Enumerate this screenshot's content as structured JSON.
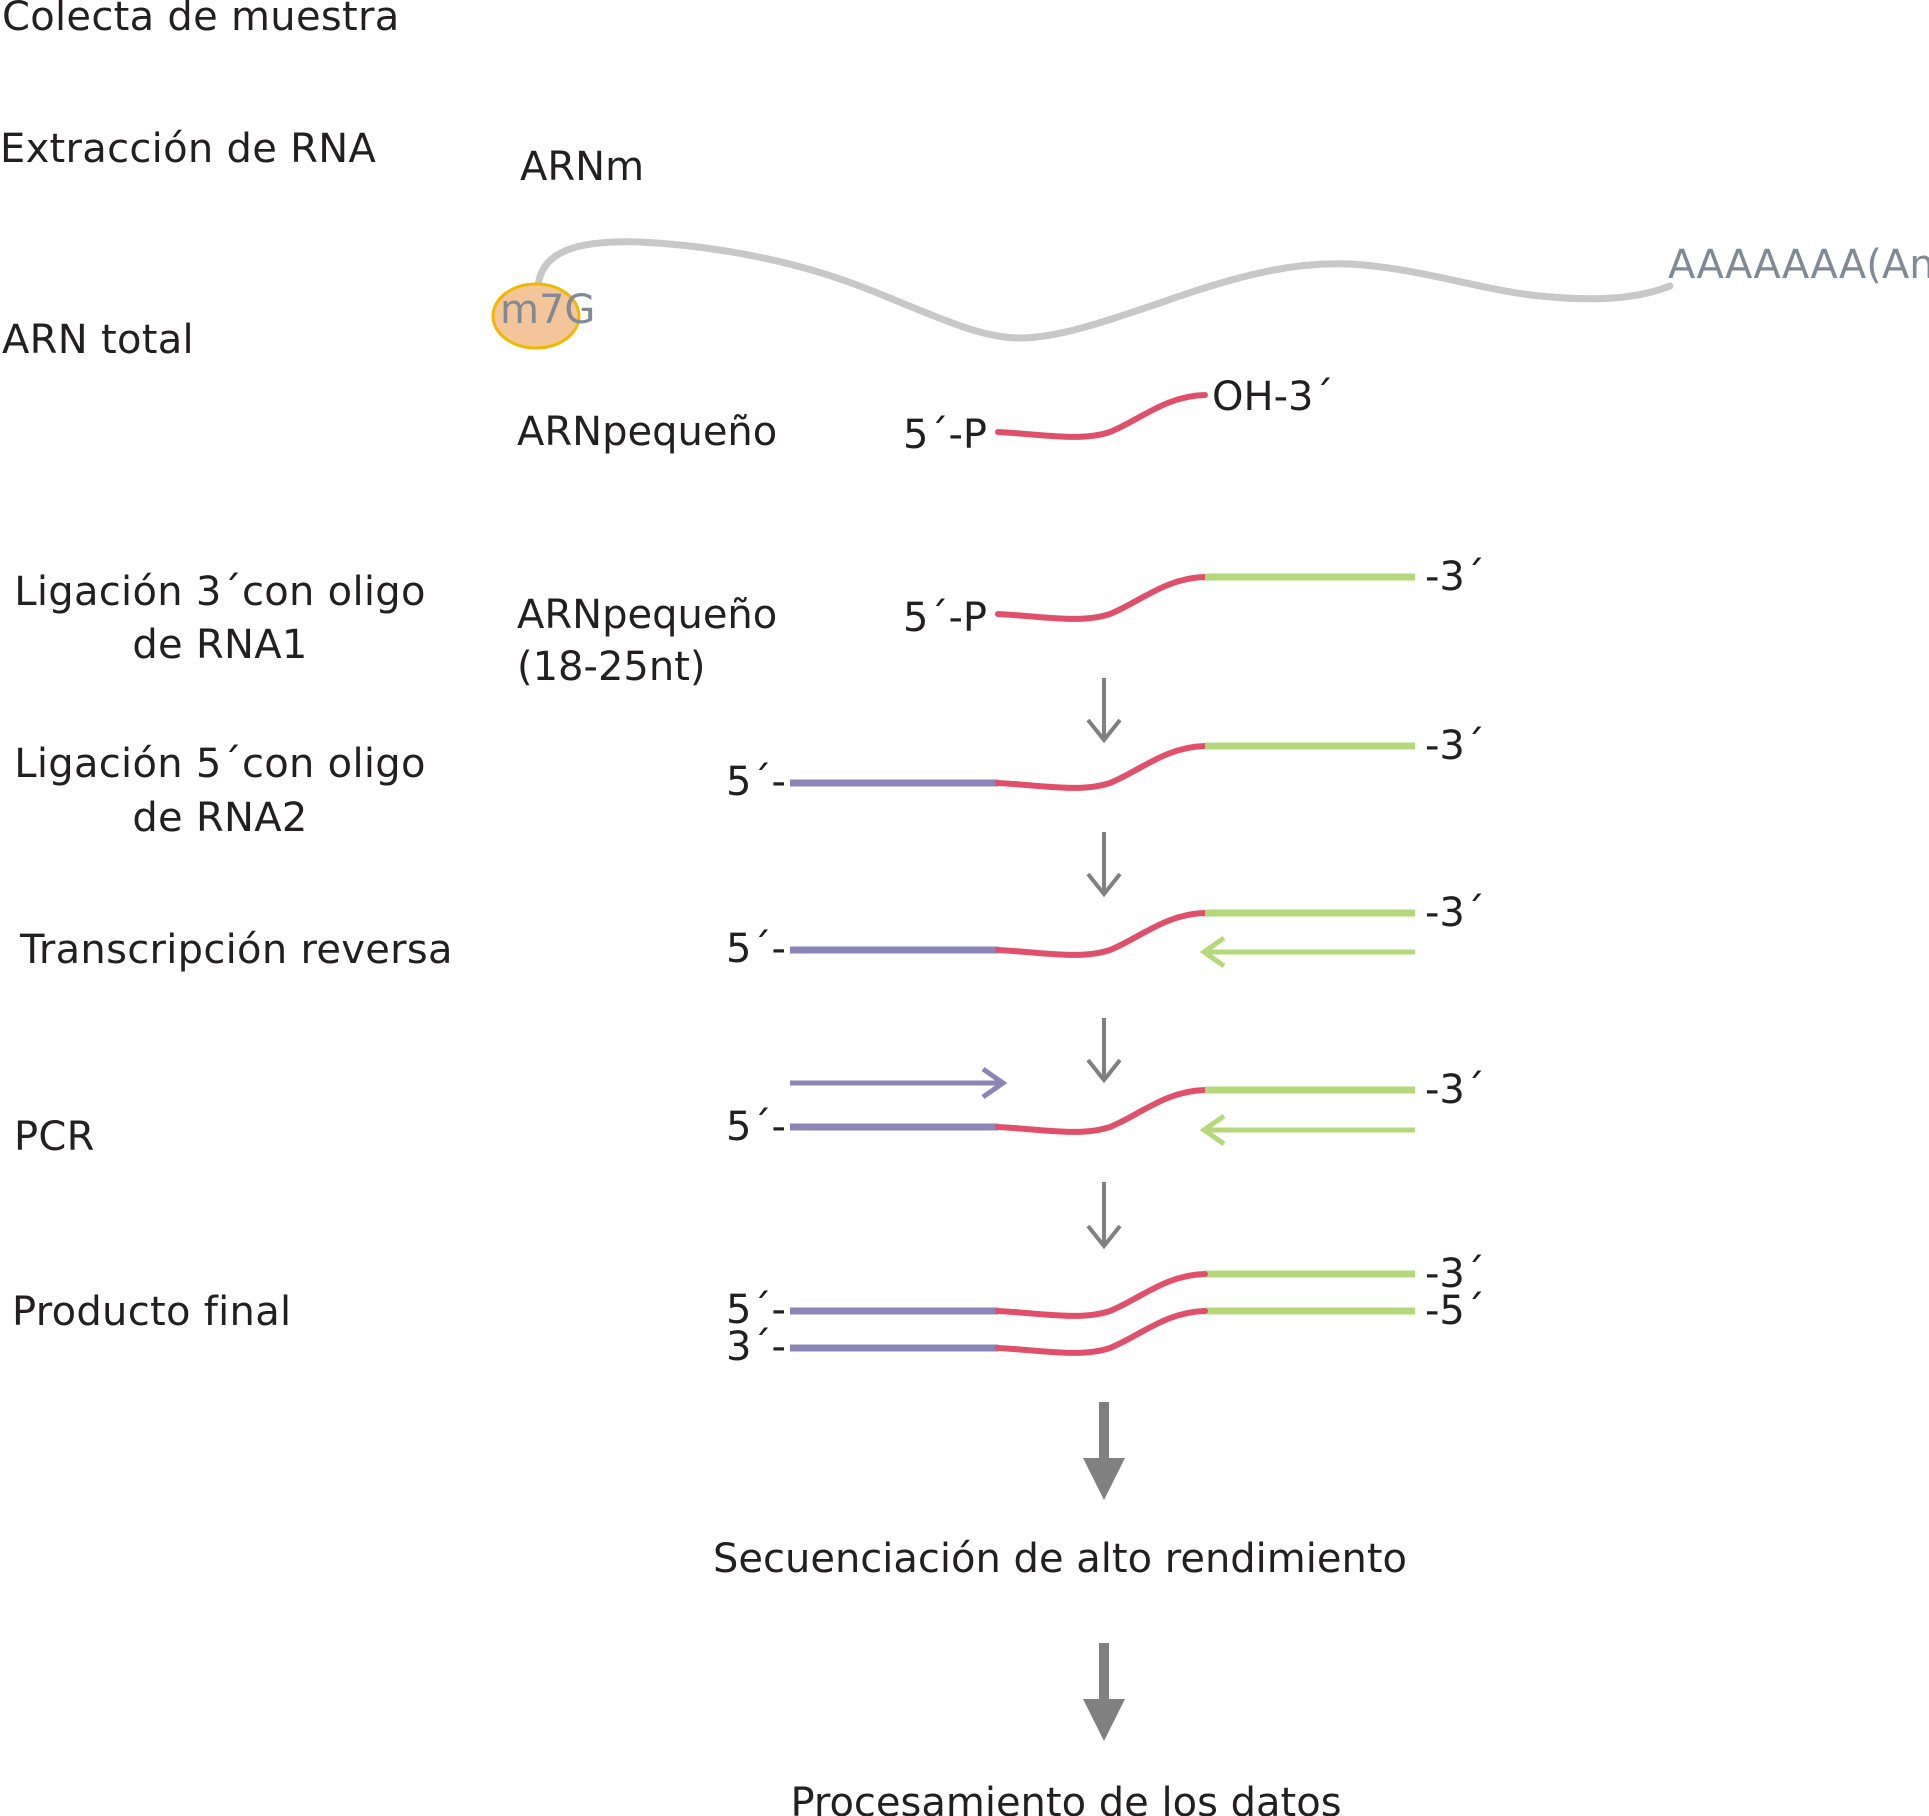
{
  "stages": {
    "sample_collection": "Colecta de muestra",
    "rna_extraction": "Extracción de RNA",
    "total_rna": "ARN total",
    "ligation3_line1": "Ligación 3´con oligo",
    "ligation3_line2": "de RNA1",
    "ligation5_line1": "Ligación 5´con oligo",
    "ligation5_line2": "de RNA2",
    "reverse_transcription": "Transcripción reversa",
    "pcr": "PCR",
    "final_product": "Producto final"
  },
  "molecules": {
    "mrna_label": "ARNm",
    "cap_label": "m7G",
    "polya_label": "AAAAAAA(An)",
    "small_rna_label": "ARNpequeño",
    "small_rna_label2": "ARNpequeño",
    "small_rna_size": "(18-25nt)"
  },
  "ends": {
    "five_p": "5´-P",
    "oh3": "OH-3´",
    "five_p_2": "5´-P",
    "three_prime": "-3´",
    "five_prime": "5´-",
    "three_prime_start": "3´-",
    "five_prime_end": "-5´"
  },
  "steps": {
    "sequencing": "Secuenciación de alto rendimiento",
    "data_processing": "Procesamiento de los datos"
  },
  "colors": {
    "mrna": "#c8c8c8",
    "cap_fill": "#f5c59a",
    "cap_stroke": "#f0b800",
    "small_rna": "#e0506b",
    "adapter3": "#b5d97a",
    "adapter5": "#8c86b8",
    "arrow": "#808080"
  }
}
